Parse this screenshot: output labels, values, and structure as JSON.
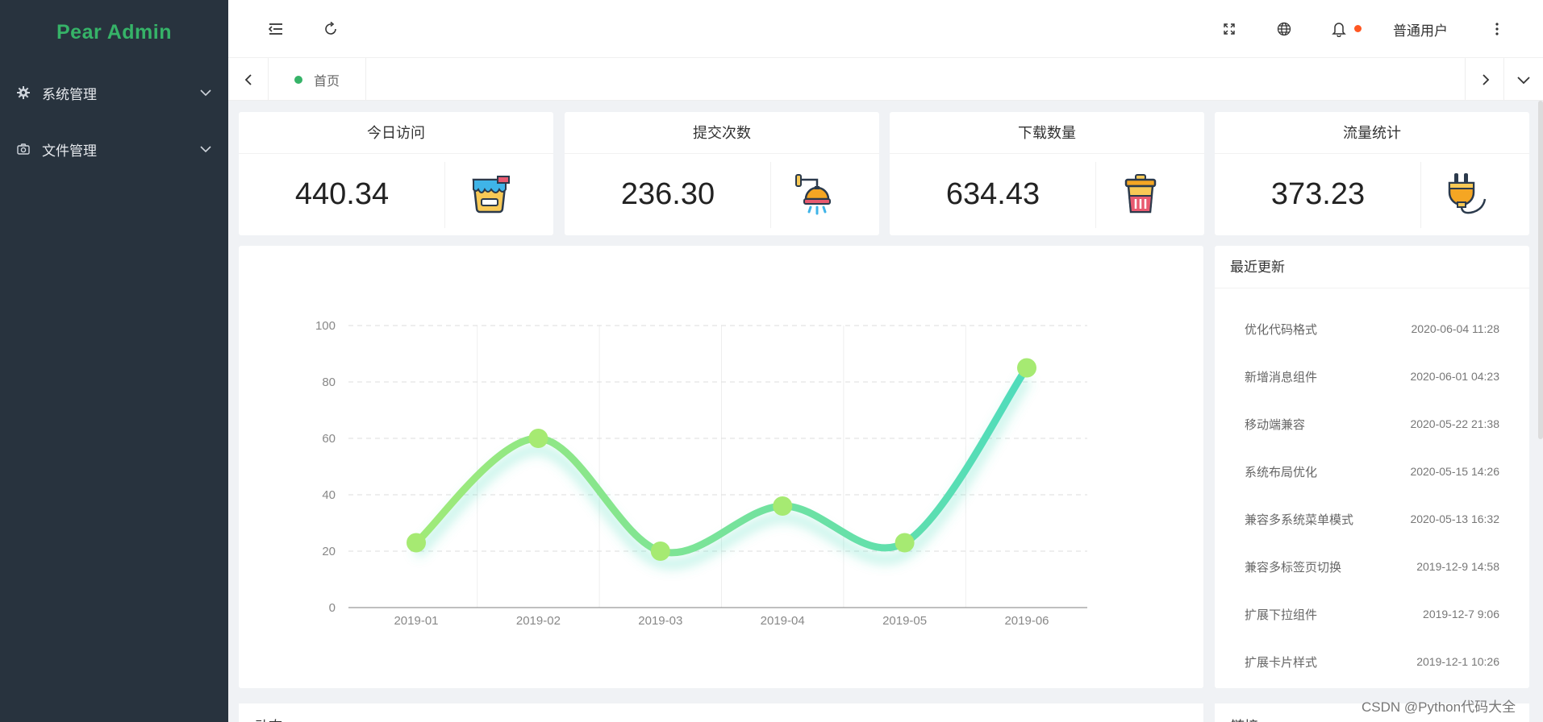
{
  "sidebar": {
    "logo": "Pear Admin",
    "items": [
      {
        "label": "系统管理",
        "icon": "gear-icon"
      },
      {
        "label": "文件管理",
        "icon": "camera-icon"
      }
    ]
  },
  "header": {
    "user_name": "普通用户",
    "icons": [
      "menu-fold-icon",
      "refresh-icon",
      "fullscreen-icon",
      "globe-icon",
      "bell-icon",
      "more-vertical-icon"
    ]
  },
  "tabs": [
    {
      "label": "首页",
      "active": true
    }
  ],
  "stats": [
    {
      "title": "今日访问",
      "value": "440.34",
      "icon": "paint-bucket-icon"
    },
    {
      "title": "提交次数",
      "value": "236.30",
      "icon": "shower-icon"
    },
    {
      "title": "下载数量",
      "value": "634.43",
      "icon": "trash-bin-icon"
    },
    {
      "title": "流量统计",
      "value": "373.23",
      "icon": "plug-icon"
    }
  ],
  "chart_data": {
    "type": "line",
    "smooth": true,
    "x": [
      "2019-01",
      "2019-02",
      "2019-03",
      "2019-04",
      "2019-05",
      "2019-06"
    ],
    "values": [
      23,
      60,
      20,
      36,
      23,
      85
    ],
    "ylim": [
      0,
      100
    ],
    "yticks": [
      "0",
      "20",
      "40",
      "60",
      "80",
      "100"
    ],
    "grid": true,
    "colors": {
      "start": "#a0ea78",
      "end": "#4fdcbc",
      "point": "#a6ea72"
    }
  },
  "updates": {
    "title": "最近更新",
    "items": [
      {
        "label": "优化代码格式",
        "date": "2020-06-04 11:28"
      },
      {
        "label": "新增消息组件",
        "date": "2020-06-01 04:23"
      },
      {
        "label": "移动端兼容",
        "date": "2020-05-22 21:38"
      },
      {
        "label": "系统布局优化",
        "date": "2020-05-15 14:26"
      },
      {
        "label": "兼容多系统菜单模式",
        "date": "2020-05-13 16:32"
      },
      {
        "label": "兼容多标签页切换",
        "date": "2019-12-9 14:58"
      },
      {
        "label": "扩展下拉组件",
        "date": "2019-12-7 9:06"
      },
      {
        "label": "扩展卡片样式",
        "date": "2019-12-1 10:26"
      }
    ]
  },
  "bottom": {
    "left_title": "动态",
    "right_title": "链接"
  },
  "watermark": "CSDN @Python代码大全",
  "colors": {
    "sidebar_bg": "#28333e",
    "brand_green": "#36b368",
    "badge_red": "#ff5722"
  }
}
